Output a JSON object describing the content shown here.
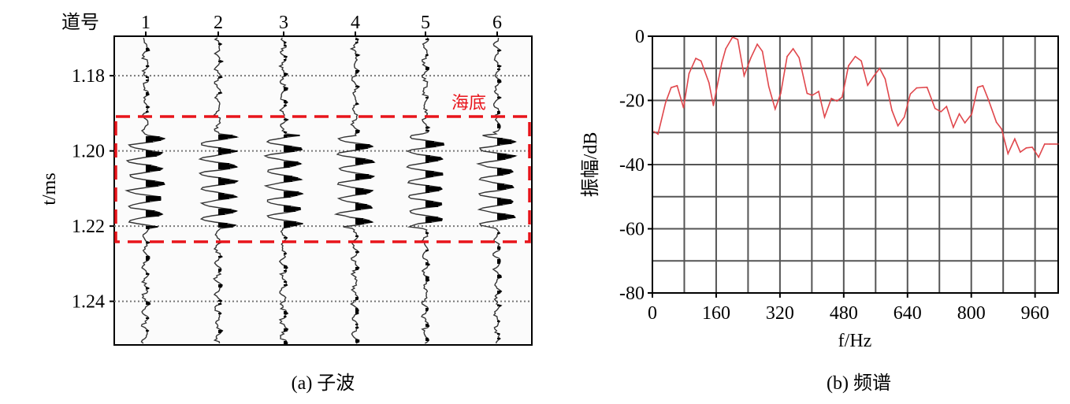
{
  "chart_data": [
    {
      "type": "seismic-wiggle",
      "caption": "(a) 子波",
      "trace_header_label": "道号",
      "trace_labels": [
        "1",
        "2",
        "3",
        "4",
        "5",
        "6"
      ],
      "ylabel": "t/ms",
      "yticks": [
        "1.18",
        "1.20",
        "1.22",
        "1.24"
      ],
      "ytick_values": [
        1.18,
        1.2,
        1.22,
        1.24
      ],
      "ylim": [
        1.1695,
        1.2516
      ],
      "y_inverted": true,
      "grid": "horizontal dotted at y ticks",
      "annotation": {
        "text": "海底",
        "color": "#e8141b",
        "box_t_range": [
          1.1915,
          1.225
        ]
      }
    },
    {
      "type": "line",
      "caption": "(b) 频谱",
      "xlabel": "f/Hz",
      "ylabel": "振幅/dB",
      "xticks": [
        "0",
        "160",
        "320",
        "480",
        "640",
        "800",
        "960"
      ],
      "xtick_values": [
        0,
        160,
        320,
        480,
        640,
        800,
        960
      ],
      "yticks": [
        "0",
        "-20",
        "-40",
        "-60",
        "-80"
      ],
      "ytick_values": [
        0,
        -20,
        -40,
        -60,
        -80
      ],
      "xlim": [
        0,
        1018
      ],
      "ylim": [
        -80,
        0
      ],
      "grid": true,
      "line_color": "#e0474c",
      "x": [
        4,
        14,
        33,
        47,
        62,
        78,
        92,
        109,
        122,
        142,
        153,
        174,
        184,
        201,
        214,
        230,
        247,
        263,
        276,
        292,
        308,
        322,
        338,
        353,
        368,
        388,
        401,
        417,
        432,
        449,
        463,
        476,
        492,
        509,
        524,
        540,
        555,
        570,
        584,
        601,
        616,
        632,
        647,
        663,
        689,
        709,
        724,
        738,
        755,
        770,
        784,
        801,
        816,
        829,
        843,
        863,
        876,
        892,
        909,
        923,
        938,
        953,
        969,
        984,
        997,
        1018
      ],
      "y": [
        -29.7,
        -30.5,
        -20.7,
        -16,
        -15.4,
        -22.3,
        -11.6,
        -6.9,
        -7.7,
        -14.5,
        -21.6,
        -8.4,
        -3.9,
        -0.3,
        -1,
        -12.3,
        -6.7,
        -2.5,
        -4.7,
        -15.7,
        -22.7,
        -17.8,
        -6.3,
        -3.9,
        -6.7,
        -17.8,
        -18.4,
        -17.2,
        -25.2,
        -19.4,
        -20.2,
        -19,
        -9.2,
        -6.3,
        -7.7,
        -15.3,
        -12.5,
        -10,
        -13.3,
        -23.1,
        -27.9,
        -25.2,
        -18,
        -16.1,
        -15.9,
        -22.5,
        -23.5,
        -21.9,
        -28.4,
        -24.2,
        -27,
        -24.3,
        -15.9,
        -15.4,
        -19.8,
        -26.8,
        -28.9,
        -36.6,
        -32,
        -36.1,
        -34.8,
        -34.6,
        -37.7,
        -33.6,
        -33.6,
        -33.6
      ]
    }
  ]
}
